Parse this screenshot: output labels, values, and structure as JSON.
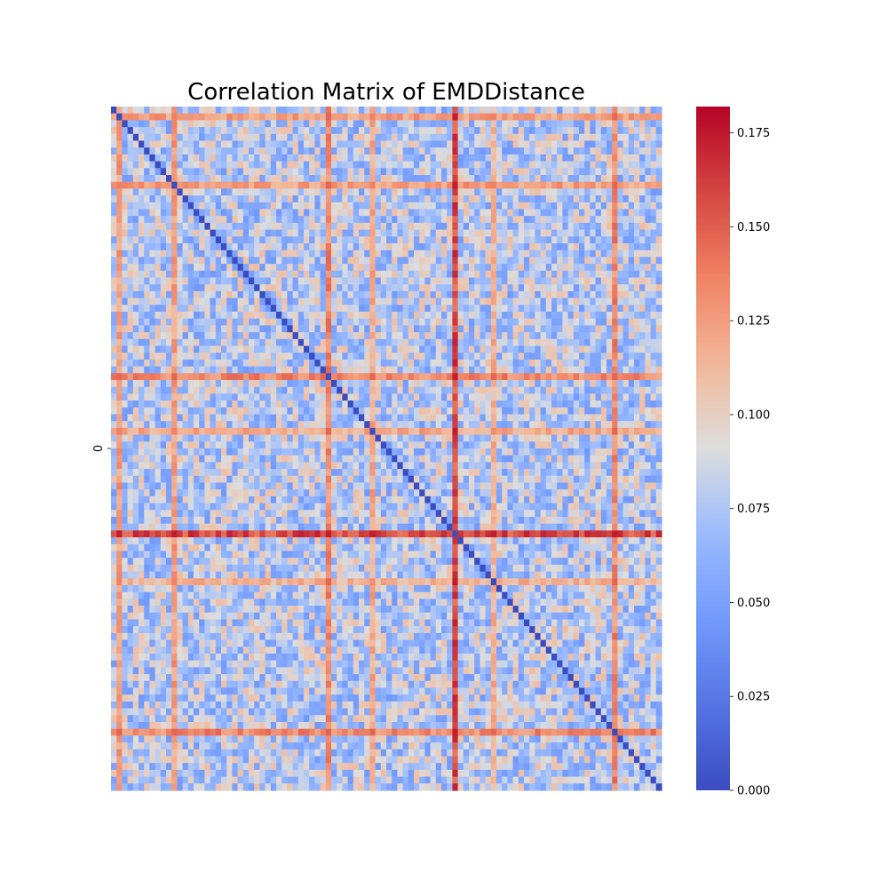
{
  "chart_data": {
    "type": "heatmap",
    "title": "Correlation Matrix of EMDDistance",
    "xlabel": "",
    "ylabel": "",
    "y_tick_labels": [
      "0"
    ],
    "n": 100,
    "colormap": "coolwarm",
    "value_range": [
      0,
      0.182
    ],
    "diagonal_value": 0,
    "base_value_range": [
      0.045,
      0.11
    ],
    "strong_indices": [
      {
        "index": 1,
        "value": 0.13
      },
      {
        "index": 11,
        "value": 0.13
      },
      {
        "index": 39,
        "value": 0.14
      },
      {
        "index": 47,
        "value": 0.125
      },
      {
        "index": 62,
        "value": 0.165
      },
      {
        "index": 69,
        "value": 0.12
      },
      {
        "index": 91,
        "value": 0.14
      }
    ],
    "colorbar": {
      "ticks": [
        0.0,
        0.025,
        0.05,
        0.075,
        0.1,
        0.125,
        0.15,
        0.175
      ],
      "tick_labels": [
        "0.000",
        "0.025",
        "0.050",
        "0.075",
        "0.100",
        "0.125",
        "0.150",
        "0.175"
      ]
    },
    "colors": {
      "low": "#3b4cc0",
      "mid": "#dddddd",
      "high": "#b40426"
    }
  }
}
